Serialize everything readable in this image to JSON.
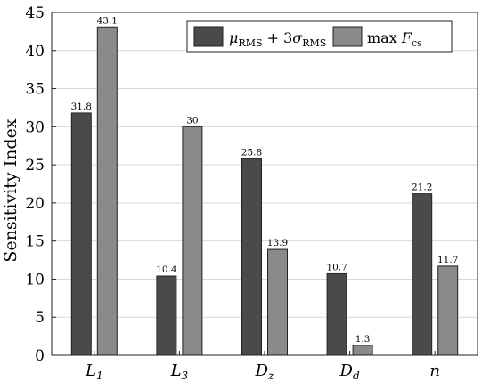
{
  "chart_data": {
    "type": "bar",
    "categories": [
      "L1",
      "L3",
      "Dz",
      "Dd",
      "n"
    ],
    "category_labels": [
      {
        "main": "L",
        "sub": "1"
      },
      {
        "main": "L",
        "sub": "3"
      },
      {
        "main": "D",
        "sub": "z"
      },
      {
        "main": "D",
        "sub": "d"
      },
      {
        "main": "n",
        "sub": ""
      }
    ],
    "series": [
      {
        "name": "μRMS + 3σRMS",
        "values": [
          31.8,
          10.4,
          25.8,
          10.7,
          21.2
        ],
        "labels": [
          "31.8",
          "10.4",
          "25.8",
          "10.7",
          "21.2"
        ],
        "color": "#4a4a4a"
      },
      {
        "name": "max Fcs",
        "values": [
          43.1,
          30,
          13.9,
          1.3,
          11.7
        ],
        "labels": [
          "43.1",
          "30",
          "13.9",
          "1.3",
          "11.7"
        ],
        "color": "#8a8a8a"
      }
    ],
    "ylabel": "Sensitivity Index",
    "xlabel": "",
    "ylim": [
      0,
      45
    ],
    "yticks": [
      0,
      5,
      10,
      15,
      20,
      25,
      30,
      35,
      40,
      45
    ],
    "grid": true,
    "legend_position": "top-right"
  }
}
